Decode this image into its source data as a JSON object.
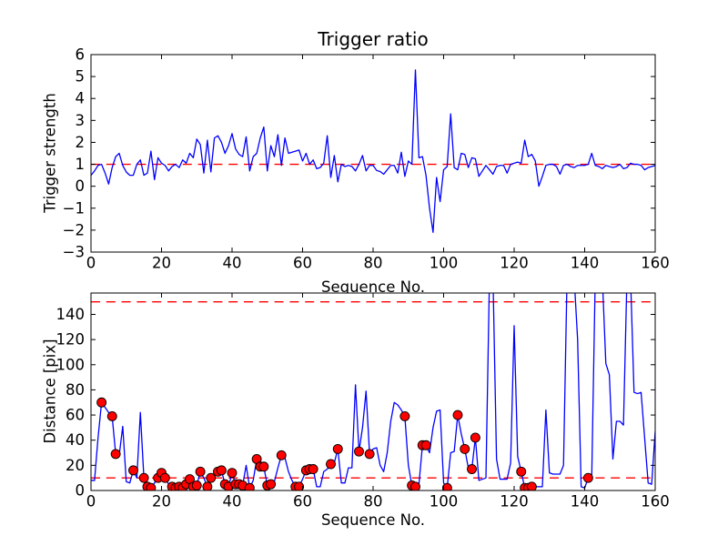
{
  "figure": {
    "background": "#ffffff",
    "frame_color": "#000000",
    "series_color": "#0000ff",
    "threshold_color": "#ff0000",
    "marker_color": "#ff0000",
    "marker_edge_color": "#000000"
  },
  "chart_data": [
    {
      "id": "trigger-ratio-plot",
      "type": "line",
      "title": "Trigger ratio",
      "xlabel": "Sequence No.",
      "ylabel": "Trigger strength",
      "xlim": [
        0,
        160
      ],
      "ylim": [
        -3,
        6
      ],
      "xticks": [
        0,
        20,
        40,
        60,
        80,
        100,
        120,
        140,
        160
      ],
      "yticks": [
        -3,
        -2,
        -1,
        0,
        1,
        2,
        3,
        4,
        5,
        6
      ],
      "grid": false,
      "legend": null,
      "reference_lines": [
        {
          "y": 1,
          "color": "#ff0000",
          "style": "dashed"
        }
      ],
      "series": [
        {
          "name": "trigger-strength",
          "color": "#0000ff",
          "x_range": [
            0,
            160,
            1
          ],
          "y": [
            0.5,
            0.7,
            0.95,
            1.0,
            0.6,
            0.1,
            0.85,
            1.35,
            1.5,
            0.95,
            0.65,
            0.5,
            0.5,
            1.0,
            1.2,
            0.5,
            0.6,
            1.6,
            0.3,
            1.3,
            1.05,
            0.95,
            0.7,
            0.9,
            1.0,
            0.85,
            1.2,
            1.05,
            1.5,
            1.3,
            2.15,
            1.9,
            0.6,
            2.1,
            0.65,
            2.2,
            2.3,
            2.0,
            1.5,
            1.85,
            2.4,
            1.7,
            1.45,
            1.35,
            2.25,
            0.7,
            1.35,
            1.5,
            2.2,
            2.7,
            0.7,
            1.85,
            1.35,
            2.35,
            0.95,
            2.2,
            1.5,
            1.55,
            1.6,
            1.65,
            1.15,
            1.5,
            1.0,
            1.2,
            0.8,
            0.85,
            1.05,
            2.3,
            0.4,
            1.4,
            0.2,
            1.0,
            0.9,
            0.95,
            0.9,
            0.7,
            1.0,
            1.4,
            0.7,
            0.95,
            0.95,
            0.72,
            0.67,
            0.55,
            0.75,
            0.95,
            0.95,
            0.6,
            1.55,
            0.45,
            1.15,
            1.0,
            5.3,
            1.3,
            1.35,
            0.5,
            -1.0,
            -2.1,
            0.4,
            -0.7,
            0.75,
            0.9,
            3.3,
            0.85,
            0.75,
            1.5,
            1.45,
            0.85,
            1.3,
            1.25,
            0.45,
            0.7,
            0.95,
            0.75,
            0.55,
            0.9,
            0.95,
            0.95,
            0.6,
            1.0,
            1.05,
            1.1,
            1.05,
            2.1,
            1.35,
            1.45,
            1.15,
            0.0,
            0.45,
            0.95,
            1.0,
            1.0,
            0.9,
            0.55,
            0.95,
            1.0,
            0.9,
            0.85,
            0.95,
            0.95,
            0.95,
            1.0,
            1.5,
            0.95,
            0.9,
            0.8,
            0.95,
            0.9,
            0.85,
            0.9,
            1.0,
            0.8,
            0.85,
            1.05,
            1.0,
            1.0,
            0.95,
            0.75,
            0.85,
            0.9,
            0.95
          ]
        }
      ]
    },
    {
      "id": "distance-plot",
      "type": "line",
      "title": "",
      "xlabel": "Sequence No.",
      "ylabel": "Distance [pix]",
      "xlim": [
        0,
        160
      ],
      "ylim": [
        0,
        157
      ],
      "xticks": [
        0,
        20,
        40,
        60,
        80,
        100,
        120,
        140,
        160
      ],
      "yticks": [
        0,
        20,
        40,
        60,
        80,
        100,
        120,
        140
      ],
      "grid": false,
      "legend": null,
      "reference_lines": [
        {
          "y": 10,
          "color": "#ff0000",
          "style": "dashed"
        },
        {
          "y": 150,
          "color": "#ff0000",
          "style": "dashed"
        }
      ],
      "series": [
        {
          "name": "distance",
          "color": "#0000ff",
          "x_range": [
            0,
            160,
            1
          ],
          "y": [
            8,
            8,
            42,
            70,
            66,
            62,
            59,
            29,
            28,
            51,
            7,
            6,
            16,
            10,
            62,
            10,
            3,
            2,
            6,
            10,
            14,
            10,
            5,
            3,
            2,
            3,
            2,
            5,
            9,
            3,
            4,
            15,
            10,
            3,
            10,
            12,
            15,
            16,
            5,
            3,
            14,
            5,
            5,
            4,
            20,
            2,
            8,
            25,
            19,
            19,
            4,
            5,
            7,
            18,
            28,
            26,
            15,
            8,
            3,
            3,
            9,
            16,
            17,
            17,
            3,
            3,
            15,
            17,
            21,
            22,
            33,
            6,
            6,
            18,
            18,
            84,
            31,
            50,
            79,
            29,
            33,
            34,
            20,
            15,
            30,
            55,
            70,
            68,
            64,
            59,
            20,
            4,
            3,
            5,
            36,
            36,
            30,
            50,
            63,
            64,
            6,
            2,
            30,
            31,
            60,
            45,
            33,
            18,
            17,
            42,
            8,
            9,
            10,
            170,
            170,
            25,
            9,
            9,
            9,
            22,
            131,
            27,
            15,
            2,
            2,
            3,
            3,
            3,
            3,
            64,
            14,
            13,
            13,
            13,
            20,
            170,
            170,
            170,
            120,
            3,
            2,
            10,
            10,
            170,
            170,
            170,
            101,
            92,
            25,
            55,
            55,
            52,
            170,
            170,
            78,
            77,
            78,
            42,
            6,
            5,
            47
          ]
        }
      ],
      "markers": {
        "name": "trigger-points",
        "shape": "circle",
        "color": "#ff0000",
        "edge_color": "#000000",
        "points": [
          [
            3,
            70
          ],
          [
            6,
            59
          ],
          [
            7,
            29
          ],
          [
            12,
            16
          ],
          [
            15,
            10
          ],
          [
            16,
            3
          ],
          [
            17,
            2
          ],
          [
            19,
            10
          ],
          [
            20,
            14
          ],
          [
            21,
            10
          ],
          [
            23,
            3
          ],
          [
            24,
            2
          ],
          [
            25,
            3
          ],
          [
            26,
            2
          ],
          [
            27,
            5
          ],
          [
            28,
            9
          ],
          [
            29,
            3
          ],
          [
            30,
            4
          ],
          [
            31,
            15
          ],
          [
            33,
            3
          ],
          [
            34,
            10
          ],
          [
            36,
            15
          ],
          [
            37,
            16
          ],
          [
            38,
            5
          ],
          [
            39,
            3
          ],
          [
            40,
            14
          ],
          [
            41,
            5
          ],
          [
            42,
            5
          ],
          [
            43,
            4
          ],
          [
            45,
            2
          ],
          [
            47,
            25
          ],
          [
            48,
            19
          ],
          [
            49,
            19
          ],
          [
            50,
            4
          ],
          [
            51,
            5
          ],
          [
            54,
            28
          ],
          [
            58,
            3
          ],
          [
            59,
            3
          ],
          [
            61,
            16
          ],
          [
            62,
            17
          ],
          [
            63,
            17
          ],
          [
            68,
            21
          ],
          [
            70,
            33
          ],
          [
            76,
            31
          ],
          [
            79,
            29
          ],
          [
            89,
            59
          ],
          [
            91,
            4
          ],
          [
            92,
            3
          ],
          [
            94,
            36
          ],
          [
            95,
            36
          ],
          [
            101,
            2
          ],
          [
            104,
            60
          ],
          [
            106,
            33
          ],
          [
            108,
            17
          ],
          [
            109,
            42
          ],
          [
            122,
            15
          ],
          [
            123,
            2
          ],
          [
            124,
            2
          ],
          [
            125,
            3
          ],
          [
            141,
            10
          ]
        ]
      }
    }
  ]
}
